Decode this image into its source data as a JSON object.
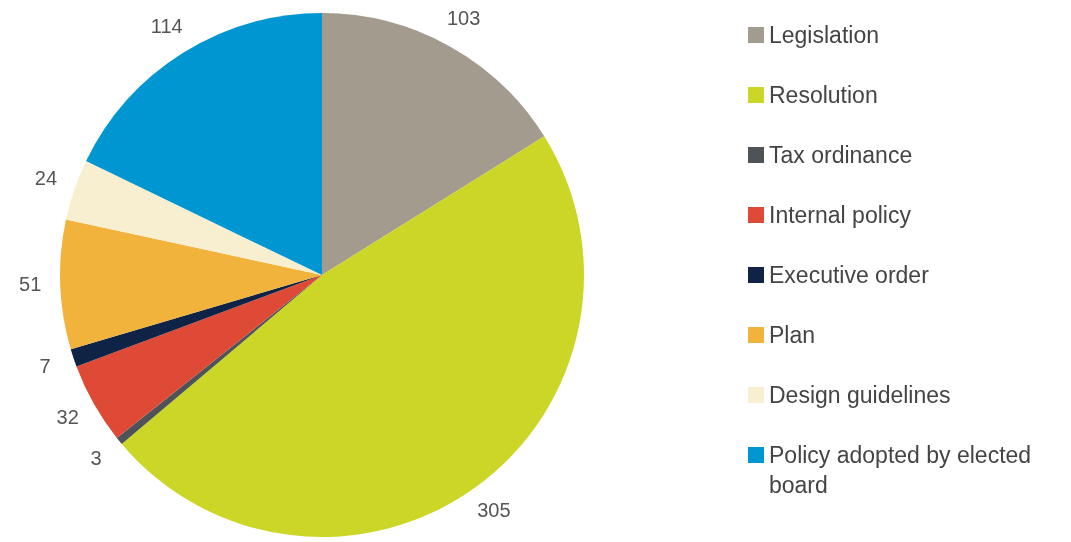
{
  "chart_data": {
    "type": "pie",
    "categories": [
      "Legislation",
      "Resolution",
      "Tax ordinance",
      "Internal policy",
      "Executive order",
      "Plan",
      "Design guidelines",
      "Policy adopted by elected board"
    ],
    "values": [
      103,
      305,
      3,
      32,
      7,
      51,
      24,
      114
    ],
    "colors": [
      "#a39b8e",
      "#ccd626",
      "#4d5357",
      "#de4a35",
      "#0f2346",
      "#f2b33d",
      "#f7efcf",
      "#0096d2"
    ],
    "data_labels": true,
    "legend": "right"
  }
}
